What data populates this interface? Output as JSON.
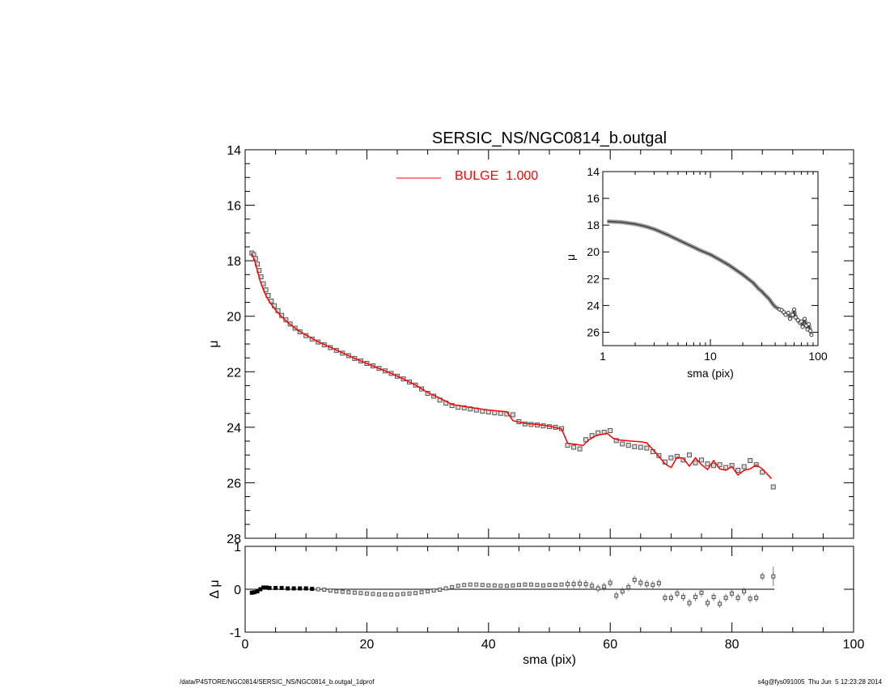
{
  "chart_data": [
    {
      "panel": "main profile",
      "type": "scatter",
      "title": "SERSIC_NS/NGC0814_b.outgal",
      "xlabel": "",
      "ylabel": "μ",
      "xlim": [
        0,
        100
      ],
      "ylim": [
        28,
        14
      ],
      "y_inverted": true,
      "y_ticks": [
        "14",
        "16",
        "18",
        "20",
        "22",
        "24",
        "26",
        "28"
      ],
      "legend": {
        "placement": "top-center",
        "entries": [
          {
            "label": "BULGE  1.000",
            "color": "#ff0000"
          }
        ]
      },
      "series": [
        {
          "name": "data",
          "marker": "square",
          "color": "#555555",
          "x": [
            1.1,
            1.4,
            1.7,
            2.0,
            2.3,
            2.6,
            3.0,
            3.4,
            3.8,
            4.3,
            4.8,
            5.4,
            6.0,
            6.7,
            7.4,
            8.2,
            9.0,
            10.0,
            11.0,
            12.0,
            13.0,
            14.0,
            15.0,
            16.0,
            17.0,
            18.0,
            19.0,
            20.0,
            21.0,
            22.0,
            23.0,
            24.0,
            25.0,
            26.0,
            27.0,
            28.0,
            29.0,
            30.0,
            31.0,
            32.0,
            33.0,
            34.0,
            35.0,
            36.0,
            37.0,
            38.0,
            39.0,
            40.0,
            41.0,
            42.0,
            43.0,
            44.0,
            45.0,
            46.0,
            47.0,
            48.0,
            49.0,
            50.0,
            51.0,
            52.0,
            53.0,
            54.0,
            55.0,
            56.0,
            57.0,
            58.0,
            59.0,
            60.0,
            61.0,
            62.0,
            63.0,
            64.0,
            65.0,
            66.0,
            67.0,
            68.0,
            69.0,
            70.0,
            71.0,
            72.0,
            73.0,
            74.0,
            75.0,
            76.0,
            77.0,
            78.0,
            79.0,
            80.0,
            81.0,
            82.0,
            83.0,
            84.0,
            85.0,
            86.8
          ],
          "y": [
            17.72,
            17.78,
            17.92,
            18.12,
            18.35,
            18.58,
            18.83,
            19.05,
            19.25,
            19.45,
            19.62,
            19.8,
            19.97,
            20.13,
            20.28,
            20.43,
            20.56,
            20.7,
            20.82,
            20.93,
            21.03,
            21.13,
            21.23,
            21.33,
            21.42,
            21.52,
            21.61,
            21.7,
            21.79,
            21.88,
            21.97,
            22.06,
            22.16,
            22.26,
            22.37,
            22.48,
            22.62,
            22.78,
            22.88,
            23.02,
            23.13,
            23.22,
            23.28,
            23.3,
            23.34,
            23.38,
            23.42,
            23.45,
            23.48,
            23.5,
            23.52,
            23.55,
            23.8,
            23.88,
            23.9,
            23.92,
            23.95,
            23.98,
            24.0,
            24.05,
            24.65,
            24.72,
            24.78,
            24.45,
            24.3,
            24.2,
            24.18,
            24.12,
            24.48,
            24.6,
            24.65,
            24.7,
            24.72,
            24.75,
            24.88,
            25.02,
            25.25,
            25.1,
            25.05,
            25.18,
            25.0,
            25.28,
            25.18,
            25.32,
            25.38,
            25.35,
            25.45,
            25.38,
            25.55,
            25.42,
            25.2,
            25.35,
            25.62,
            26.15
          ]
        },
        {
          "name": "BULGE  1.000",
          "type": "line",
          "color": "#ff0000",
          "x": [
            1.1,
            1.5,
            2.0,
            2.5,
            3.0,
            3.5,
            4.0,
            5.0,
            6.0,
            7.0,
            8.0,
            9.0,
            10.0,
            12.0,
            14.0,
            16.0,
            18.0,
            20.0,
            22.0,
            24.0,
            26.0,
            28.0,
            30.0,
            32.0,
            34.0,
            36.0,
            38.0,
            40.0,
            42.0,
            43.0,
            44.0,
            46.0,
            48.0,
            50.0,
            52.0,
            53.0,
            54.5,
            55.5,
            56.5,
            57.5,
            58.5,
            59.5,
            60.5,
            61.5,
            62.5,
            63.5,
            65.0,
            66.0,
            67.0,
            68.0,
            69.0,
            70.0,
            71.0,
            72.0,
            73.0,
            74.0,
            75.0,
            76.0,
            77.0,
            78.0,
            79.0,
            80.0,
            81.0,
            82.0,
            83.0,
            84.0,
            85.0,
            86.5
          ],
          "y": [
            17.75,
            17.95,
            18.35,
            18.75,
            19.05,
            19.3,
            19.48,
            19.78,
            20.02,
            20.22,
            20.4,
            20.55,
            20.68,
            20.92,
            21.12,
            21.32,
            21.52,
            21.7,
            21.88,
            22.06,
            22.26,
            22.48,
            22.75,
            22.95,
            23.18,
            23.25,
            23.32,
            23.38,
            23.42,
            23.44,
            23.76,
            23.86,
            23.9,
            23.96,
            24.06,
            24.58,
            24.62,
            24.66,
            24.45,
            24.32,
            24.26,
            24.22,
            24.4,
            24.46,
            24.48,
            24.5,
            24.52,
            24.56,
            24.8,
            25.05,
            25.32,
            25.45,
            25.08,
            25.12,
            25.4,
            25.1,
            25.35,
            25.52,
            25.2,
            25.5,
            25.55,
            25.42,
            25.72,
            25.55,
            25.5,
            25.36,
            25.5,
            25.85
          ]
        }
      ]
    },
    {
      "panel": "residuals",
      "type": "scatter",
      "xlabel": "sma (pix)",
      "ylabel": "Δ μ",
      "xlim": [
        0,
        100
      ],
      "ylim": [
        -1,
        1
      ],
      "x_ticks": [
        "0",
        "20",
        "40",
        "60",
        "80",
        "100"
      ],
      "y_ticks": [
        "1",
        "0",
        "-1"
      ],
      "reference_line": 0,
      "series": [
        {
          "name": "residual",
          "marker": "square",
          "color": "#555555",
          "x": [
            1.1,
            1.5,
            2.0,
            2.5,
            3.0,
            3.5,
            4.0,
            5.0,
            6.0,
            7.0,
            8.0,
            9.0,
            10.0,
            11.0,
            12.0,
            13.0,
            14.0,
            15.0,
            16.0,
            17.0,
            18.0,
            19.0,
            20.0,
            21.0,
            22.0,
            23.0,
            24.0,
            25.0,
            26.0,
            27.0,
            28.0,
            29.0,
            30.0,
            31.0,
            32.0,
            33.0,
            34.0,
            35.0,
            36.0,
            37.0,
            38.0,
            39.0,
            40.0,
            41.0,
            42.0,
            43.0,
            44.0,
            45.0,
            46.0,
            47.0,
            48.0,
            49.0,
            50.0,
            51.0,
            52.0,
            53.0,
            54.0,
            55.0,
            56.0,
            57.0,
            58.0,
            59.0,
            60.0,
            61.0,
            62.0,
            63.0,
            64.0,
            65.0,
            66.0,
            67.0,
            68.0,
            69.0,
            70.0,
            71.0,
            72.0,
            73.0,
            74.0,
            75.0,
            76.0,
            77.0,
            78.0,
            79.0,
            80.0,
            81.0,
            82.0,
            83.0,
            84.0,
            85.0,
            86.8
          ],
          "y": [
            -0.08,
            -0.07,
            -0.05,
            0.0,
            0.04,
            0.04,
            0.03,
            0.03,
            0.03,
            0.02,
            0.02,
            0.02,
            0.02,
            0.01,
            0.0,
            -0.01,
            -0.03,
            -0.05,
            -0.06,
            -0.07,
            -0.08,
            -0.09,
            -0.1,
            -0.11,
            -0.12,
            -0.12,
            -0.12,
            -0.12,
            -0.11,
            -0.1,
            -0.09,
            -0.07,
            -0.05,
            -0.03,
            -0.01,
            0.02,
            0.05,
            0.08,
            0.1,
            0.11,
            0.11,
            0.1,
            0.09,
            0.09,
            0.08,
            0.08,
            0.09,
            0.1,
            0.11,
            0.11,
            0.1,
            0.09,
            0.1,
            0.1,
            0.11,
            0.12,
            0.12,
            0.13,
            0.12,
            0.08,
            0.02,
            0.06,
            0.15,
            -0.15,
            -0.05,
            0.05,
            0.22,
            0.15,
            0.12,
            0.1,
            0.14,
            -0.2,
            -0.2,
            -0.1,
            -0.18,
            -0.32,
            -0.18,
            -0.08,
            -0.32,
            -0.18,
            -0.34,
            -0.2,
            -0.1,
            -0.2,
            -0.05,
            -0.22,
            -0.2,
            0.3,
            0.3
          ]
        }
      ]
    },
    {
      "panel": "inset log profile",
      "type": "line",
      "xlabel": "sma (pix)",
      "ylabel": "μ",
      "x_scale": "log",
      "xlim": [
        1,
        100
      ],
      "ylim": [
        27,
        14
      ],
      "y_inverted": true,
      "x_ticks": [
        "1",
        "10",
        "100"
      ],
      "y_ticks": [
        "14",
        "16",
        "18",
        "20",
        "22",
        "24",
        "26"
      ],
      "series": [
        {
          "name": "data",
          "color": "#333333",
          "x": [
            1.1,
            1.5,
            2.0,
            2.5,
            3.0,
            4.0,
            5.0,
            6.0,
            7.0,
            8.0,
            10.0,
            12.0,
            15.0,
            18.0,
            20.0,
            25.0,
            28.0,
            30.0,
            33.0,
            35.0,
            38.0,
            40.0,
            42.0,
            44.0,
            46.0,
            48.0,
            50.0,
            53.0,
            55.0,
            58.0,
            60.0,
            62.0,
            65.0,
            68.0,
            70.0,
            72.0,
            75.0,
            78.0,
            80.0,
            82.0,
            85.0,
            87.0
          ],
          "y": [
            17.72,
            17.78,
            17.92,
            18.1,
            18.3,
            18.72,
            19.1,
            19.4,
            19.65,
            19.88,
            20.2,
            20.55,
            21.0,
            21.45,
            21.7,
            22.3,
            22.75,
            22.95,
            23.3,
            23.5,
            23.9,
            24.1,
            24.2,
            24.3,
            24.35,
            24.5,
            24.7,
            24.55,
            25.0,
            24.7,
            24.3,
            24.9,
            25.1,
            25.3,
            25.2,
            25.6,
            25.0,
            25.5,
            25.8,
            25.4,
            25.9,
            26.2
          ]
        }
      ]
    }
  ],
  "footer": {
    "left": "/data/P4STORE/NGC0814/SERSIC_NS/NGC0814_b.outgal_1dprof",
    "right": "s4g@fys091005  Thu Jun  5 12:23:28 2014"
  }
}
